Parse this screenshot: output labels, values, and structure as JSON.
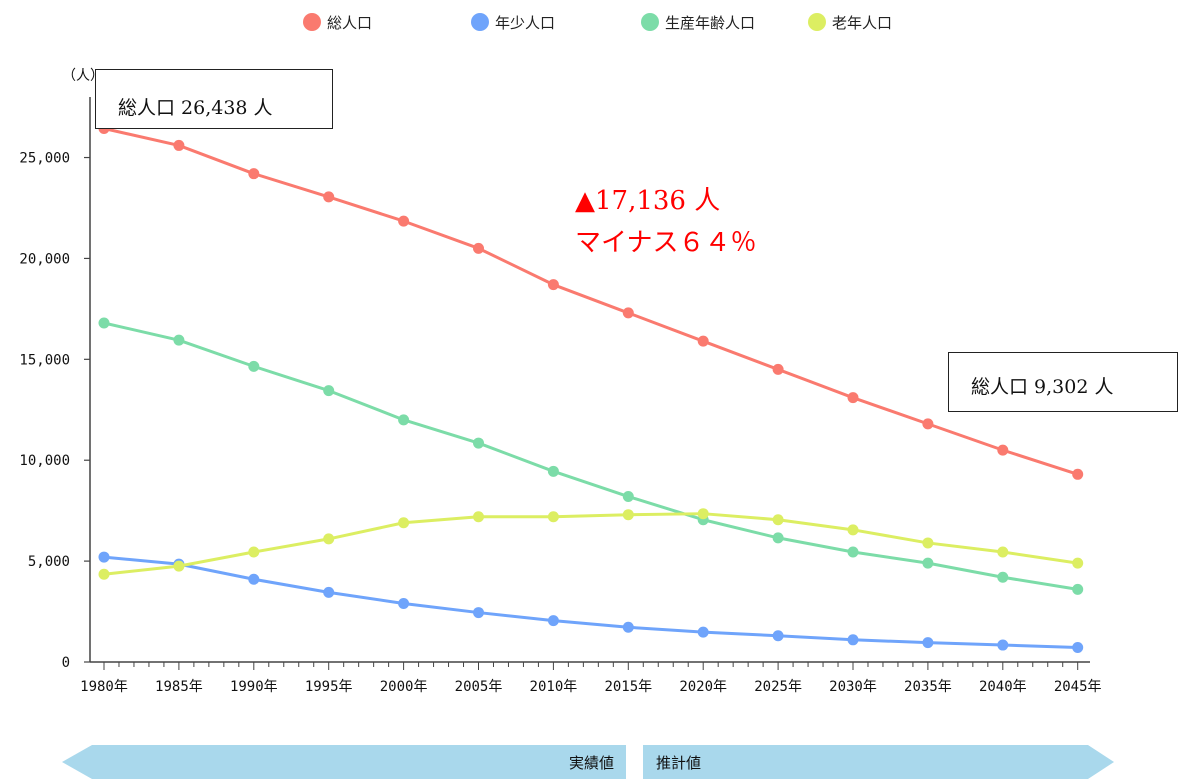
{
  "chart_data": {
    "type": "line",
    "x": [
      "1980年",
      "1985年",
      "1990年",
      "1995年",
      "2000年",
      "2005年",
      "2010年",
      "2015年",
      "2020年",
      "2025年",
      "2030年",
      "2035年",
      "2040年",
      "2045年"
    ],
    "yunit": "（人）",
    "ylim": [
      0,
      28000
    ],
    "yticks": [
      0,
      5000,
      10000,
      15000,
      20000,
      25000
    ],
    "ytick_labels": [
      "0",
      "5,000",
      "10,000",
      "15,000",
      "20,000",
      "25,000"
    ],
    "grid": false,
    "legend_position": "top",
    "series": [
      {
        "name": "総人口",
        "color": "#fa7a6f",
        "values": [
          26438,
          25600,
          24200,
          23050,
          21850,
          20500,
          18700,
          17300,
          15900,
          14500,
          13100,
          11800,
          10500,
          9302
        ]
      },
      {
        "name": "年少人口",
        "color": "#6fa4fb",
        "values": [
          5200,
          4850,
          4100,
          3450,
          2900,
          2450,
          2050,
          1720,
          1480,
          1300,
          1100,
          960,
          840,
          720
        ]
      },
      {
        "name": "生産年齢人口",
        "color": "#7cdca8",
        "values": [
          16800,
          15950,
          14650,
          13450,
          12000,
          10850,
          9450,
          8200,
          7050,
          6150,
          5450,
          4900,
          4200,
          3600
        ]
      },
      {
        "name": "老年人口",
        "color": "#dcee62",
        "values": [
          4350,
          4750,
          5450,
          6100,
          6900,
          7200,
          7200,
          7300,
          7350,
          7050,
          6550,
          5900,
          5450,
          4900
        ]
      }
    ],
    "annotations": {
      "start_total": "総人口 26,438 人",
      "end_total": "総人口 9,302 人",
      "decline_amount": "▲17,136 人",
      "decline_percent": "マイナス６４％",
      "decline_color": "#ff0000"
    },
    "period_labels": {
      "actual": "実績値",
      "projected": "推計値",
      "arrow_color": "#a9d8ec"
    }
  }
}
